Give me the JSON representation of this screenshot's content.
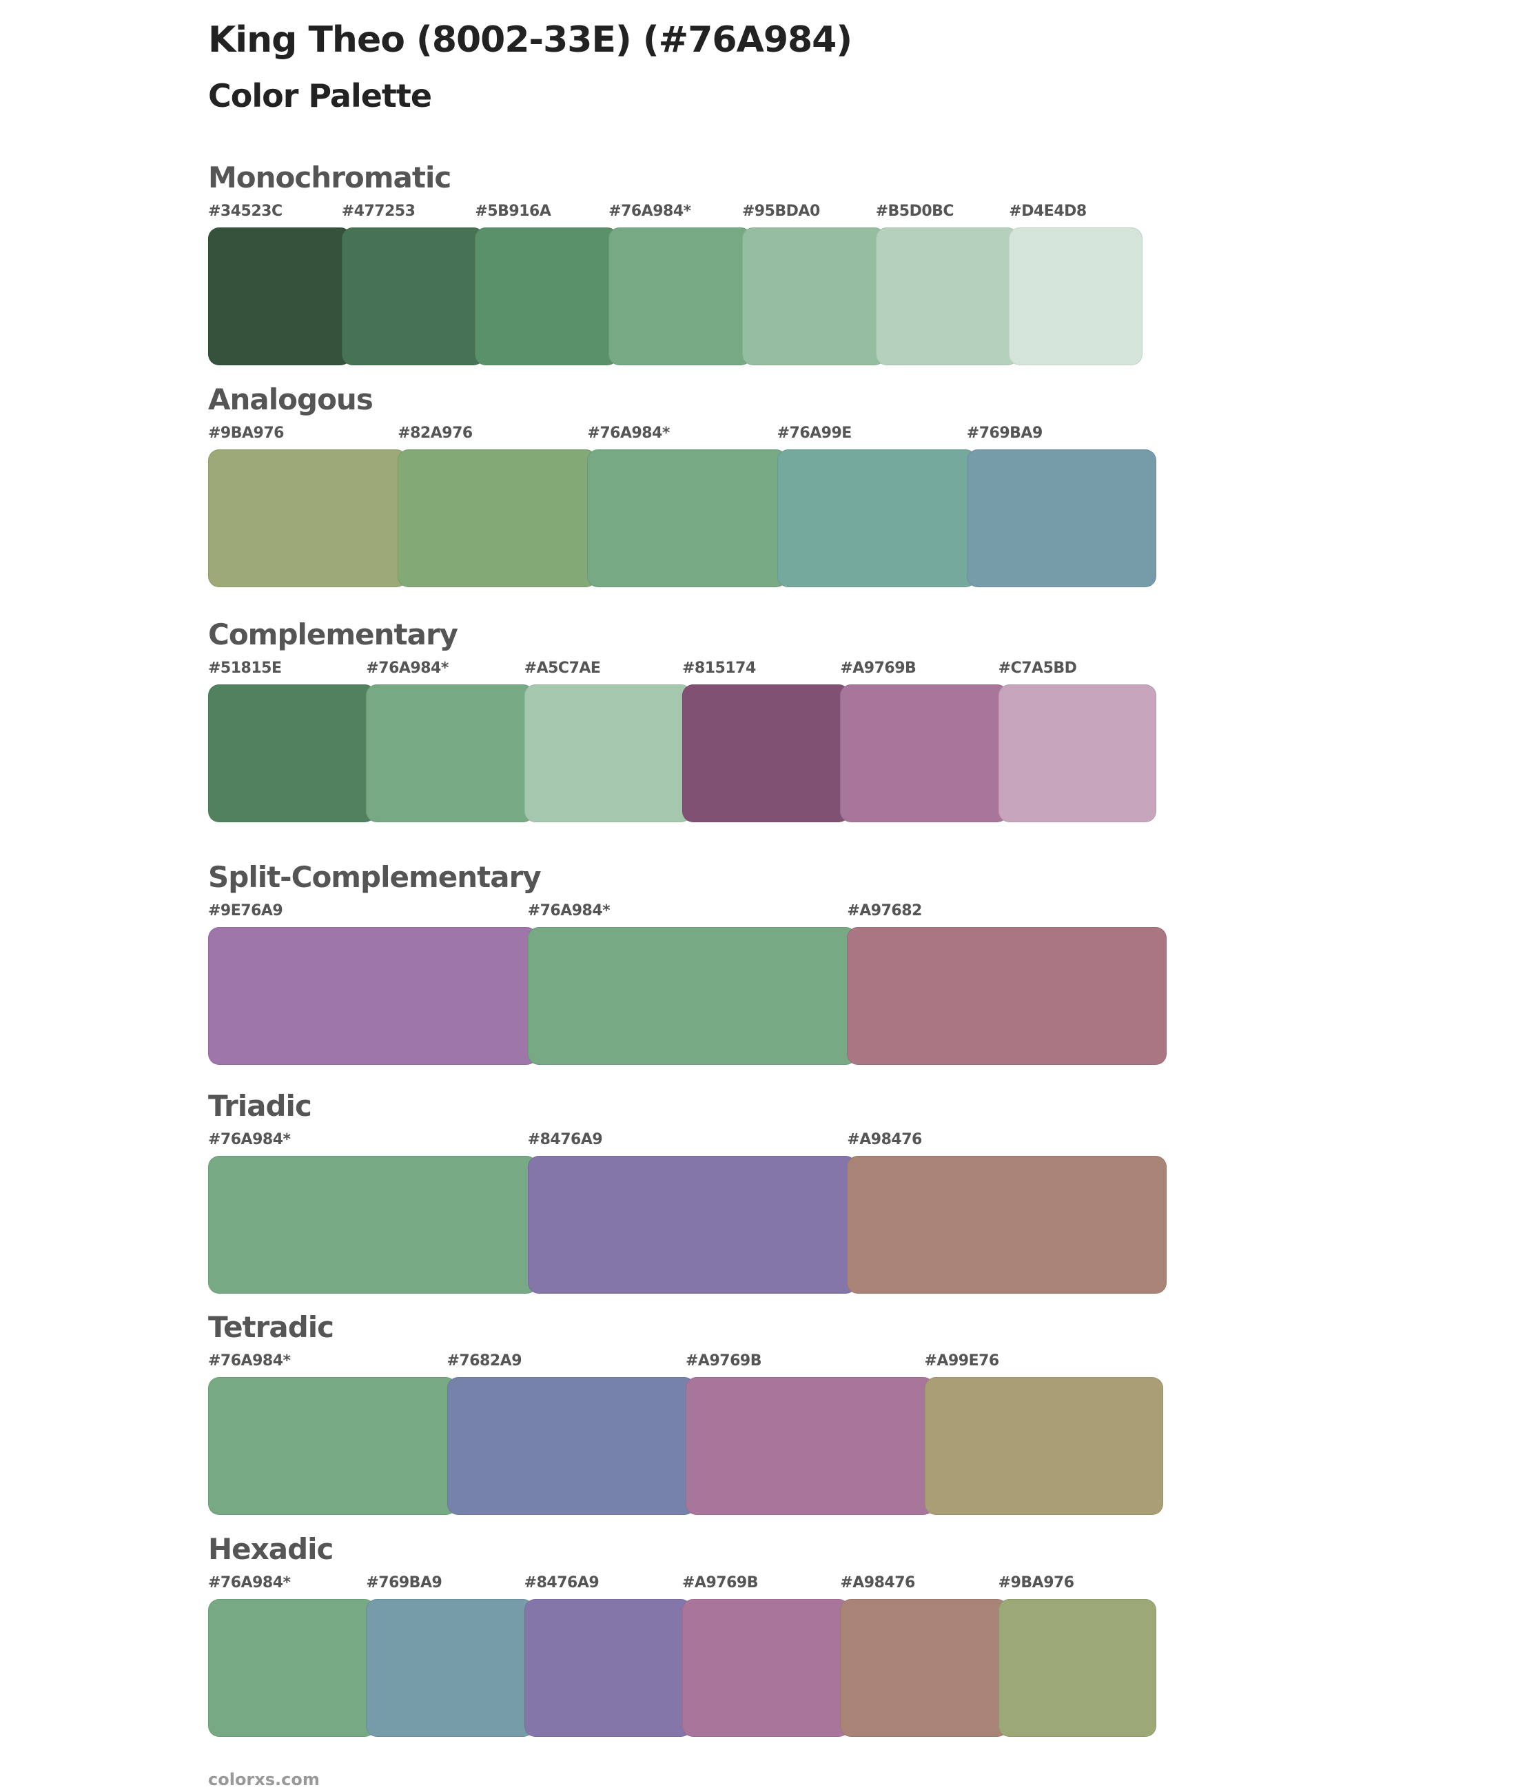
{
  "title": "King Theo (8002-33E) (#76A984)",
  "subtitle": "Color Palette",
  "sections": [
    {
      "name": "Monochromatic",
      "colors": [
        "#34523C",
        "#477253",
        "#5B916A",
        "#76A984",
        "#95BDA0",
        "#B5D0BC",
        "#D4E4D8"
      ],
      "labels": [
        "#34523C",
        "#477253",
        "#5B916A",
        "#76A984*",
        "#95BDA0",
        "#B5D0BC",
        "#D4E4D8"
      ]
    },
    {
      "name": "Analogous",
      "colors": [
        "#9BA976",
        "#82A976",
        "#76A984",
        "#76A99E",
        "#769BA9"
      ],
      "labels": [
        "#9BA976",
        "#82A976",
        "#76A984*",
        "#76A99E",
        "#769BA9"
      ]
    },
    {
      "name": "Complementary",
      "colors": [
        "#51815E",
        "#76A984",
        "#A5C7AE",
        "#815174",
        "#A9769B",
        "#C7A5BD"
      ],
      "labels": [
        "#51815E",
        "#76A984*",
        "#A5C7AE",
        "#815174",
        "#A9769B",
        "#C7A5BD"
      ]
    },
    {
      "name": "Split-Complementary",
      "colors": [
        "#9E76A9",
        "#76A984",
        "#A97682"
      ],
      "labels": [
        "#9E76A9",
        "#76A984*",
        "#A97682"
      ]
    },
    {
      "name": "Triadic",
      "colors": [
        "#76A984",
        "#8476A9",
        "#A98476"
      ],
      "labels": [
        "#76A984*",
        "#8476A9",
        "#A98476"
      ]
    },
    {
      "name": "Tetradic",
      "colors": [
        "#76A984",
        "#7682A9",
        "#A9769B",
        "#A99E76"
      ],
      "labels": [
        "#76A984*",
        "#7682A9",
        "#A9769B",
        "#A99E76"
      ]
    },
    {
      "name": "Hexadic",
      "colors": [
        "#76A984",
        "#769BA9",
        "#8476A9",
        "#A9769B",
        "#A98476",
        "#9BA976"
      ],
      "labels": [
        "#76A984*",
        "#769BA9",
        "#8476A9",
        "#A9769B",
        "#A98476",
        "#9BA976"
      ]
    }
  ],
  "footer": "colorxs.com"
}
